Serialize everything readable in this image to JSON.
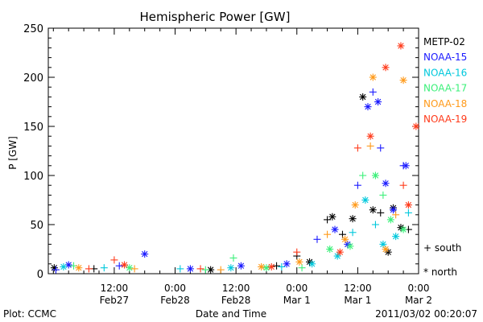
{
  "chart_data": {
    "type": "scatter",
    "title": "Hemispheric Power [GW]",
    "ylabel": "P [GW]",
    "xlabel": "Date and Time",
    "x_axis": "time",
    "ylim": [
      0,
      250
    ],
    "y_ticks": [
      0,
      50,
      100,
      150,
      200,
      250
    ],
    "xlim": [
      "2011-02-26T23:00",
      "2011-03-02T00:00"
    ],
    "x_ticks": [
      {
        "t": "2011-02-27T12:00",
        "time": "12:00",
        "date": "Feb27"
      },
      {
        "t": "2011-02-28T00:00",
        "time": "0:00",
        "date": "Feb28"
      },
      {
        "t": "2011-02-28T12:00",
        "time": "12:00",
        "date": "Feb28"
      },
      {
        "t": "2011-03-01T00:00",
        "time": "0:00",
        "date": "Mar 1"
      },
      {
        "t": "2011-03-01T12:00",
        "time": "12:00",
        "date": "Mar 1"
      },
      {
        "t": "2011-03-02T00:00",
        "time": "0:00",
        "date": "Mar 2"
      }
    ],
    "grid": false,
    "legend_position": "right",
    "marker_legend": [
      {
        "symbol": "+",
        "label": "south"
      },
      {
        "symbol": "*",
        "label": "north"
      }
    ],
    "series": [
      {
        "name": "METP-02",
        "color": "#000000",
        "points": [
          {
            "t": "2011-02-27T00:10",
            "y": 6,
            "m": "*"
          },
          {
            "t": "2011-02-27T08:00",
            "y": 5,
            "m": "+"
          },
          {
            "t": "2011-02-28T07:00",
            "y": 4,
            "m": "*"
          },
          {
            "t": "2011-02-28T20:00",
            "y": 8,
            "m": "+"
          },
          {
            "t": "2011-03-01T00:00",
            "y": 18,
            "m": "+"
          },
          {
            "t": "2011-03-01T02:30",
            "y": 12,
            "m": "*"
          },
          {
            "t": "2011-03-01T06:00",
            "y": 55,
            "m": "+"
          },
          {
            "t": "2011-03-01T07:00",
            "y": 58,
            "m": "*"
          },
          {
            "t": "2011-03-01T09:00",
            "y": 40,
            "m": "+"
          },
          {
            "t": "2011-03-01T11:00",
            "y": 56,
            "m": "*"
          },
          {
            "t": "2011-03-01T13:00",
            "y": 180,
            "m": "*"
          },
          {
            "t": "2011-03-01T15:00",
            "y": 65,
            "m": "*"
          },
          {
            "t": "2011-03-01T16:30",
            "y": 62,
            "m": "+"
          },
          {
            "t": "2011-03-01T18:00",
            "y": 22,
            "m": "*"
          },
          {
            "t": "2011-03-01T19:00",
            "y": 67,
            "m": "*"
          },
          {
            "t": "2011-03-01T20:30",
            "y": 47,
            "m": "*"
          },
          {
            "t": "2011-03-01T22:00",
            "y": 45,
            "m": "+"
          }
        ]
      },
      {
        "name": "NOAA-15",
        "color": "#1a1aff",
        "points": [
          {
            "t": "2011-02-27T00:30",
            "y": 4,
            "m": "+"
          },
          {
            "t": "2011-02-27T03:00",
            "y": 9,
            "m": "*"
          },
          {
            "t": "2011-02-27T13:00",
            "y": 8,
            "m": "+"
          },
          {
            "t": "2011-02-27T18:00",
            "y": 20,
            "m": "*"
          },
          {
            "t": "2011-02-28T03:00",
            "y": 5,
            "m": "*"
          },
          {
            "t": "2011-02-28T13:00",
            "y": 8,
            "m": "*"
          },
          {
            "t": "2011-02-28T22:00",
            "y": 10,
            "m": "*"
          },
          {
            "t": "2011-03-01T04:00",
            "y": 35,
            "m": "+"
          },
          {
            "t": "2011-03-01T07:30",
            "y": 45,
            "m": "*"
          },
          {
            "t": "2011-03-01T10:00",
            "y": 30,
            "m": "*"
          },
          {
            "t": "2011-03-01T12:00",
            "y": 90,
            "m": "+"
          },
          {
            "t": "2011-03-01T14:00",
            "y": 170,
            "m": "*"
          },
          {
            "t": "2011-03-01T15:00",
            "y": 185,
            "m": "+"
          },
          {
            "t": "2011-03-01T16:00",
            "y": 175,
            "m": "*"
          },
          {
            "t": "2011-03-01T16:30",
            "y": 128,
            "m": "+"
          },
          {
            "t": "2011-03-01T17:30",
            "y": 92,
            "m": "*"
          },
          {
            "t": "2011-03-01T19:00",
            "y": 65,
            "m": "*"
          },
          {
            "t": "2011-03-01T21:00",
            "y": 110,
            "m": "+"
          },
          {
            "t": "2011-03-01T21:30",
            "y": 110,
            "m": "*"
          }
        ]
      },
      {
        "name": "NOAA-16",
        "color": "#00c8dc",
        "points": [
          {
            "t": "2011-02-27T02:00",
            "y": 7,
            "m": "*"
          },
          {
            "t": "2011-02-27T10:00",
            "y": 6,
            "m": "+"
          },
          {
            "t": "2011-02-28T01:00",
            "y": 5,
            "m": "+"
          },
          {
            "t": "2011-02-28T11:00",
            "y": 6,
            "m": "*"
          },
          {
            "t": "2011-02-28T21:00",
            "y": 7,
            "m": "+"
          },
          {
            "t": "2011-03-01T03:00",
            "y": 10,
            "m": "*"
          },
          {
            "t": "2011-03-01T08:00",
            "y": 18,
            "m": "*"
          },
          {
            "t": "2011-03-01T11:00",
            "y": 42,
            "m": "+"
          },
          {
            "t": "2011-03-01T13:30",
            "y": 75,
            "m": "*"
          },
          {
            "t": "2011-03-01T15:30",
            "y": 50,
            "m": "+"
          },
          {
            "t": "2011-03-01T17:00",
            "y": 30,
            "m": "*"
          },
          {
            "t": "2011-03-01T19:30",
            "y": 38,
            "m": "*"
          },
          {
            "t": "2011-03-01T22:00",
            "y": 62,
            "m": "+"
          }
        ]
      },
      {
        "name": "NOAA-17",
        "color": "#3cf07a",
        "points": [
          {
            "t": "2011-02-27T04:00",
            "y": 8,
            "m": "+"
          },
          {
            "t": "2011-02-27T15:00",
            "y": 6,
            "m": "*"
          },
          {
            "t": "2011-02-28T06:00",
            "y": 4,
            "m": "+"
          },
          {
            "t": "2011-02-28T11:30",
            "y": 16,
            "m": "+"
          },
          {
            "t": "2011-02-28T18:00",
            "y": 6,
            "m": "*"
          },
          {
            "t": "2011-03-01T01:00",
            "y": 6,
            "m": "+"
          },
          {
            "t": "2011-03-01T06:30",
            "y": 25,
            "m": "*"
          },
          {
            "t": "2011-03-01T10:30",
            "y": 28,
            "m": "*"
          },
          {
            "t": "2011-03-01T13:00",
            "y": 100,
            "m": "+"
          },
          {
            "t": "2011-03-01T15:30",
            "y": 100,
            "m": "*"
          },
          {
            "t": "2011-03-01T17:00",
            "y": 80,
            "m": "+"
          },
          {
            "t": "2011-03-01T18:30",
            "y": 55,
            "m": "*"
          },
          {
            "t": "2011-03-01T21:00",
            "y": 45,
            "m": "*"
          }
        ]
      },
      {
        "name": "NOAA-18",
        "color": "#ff9a1a",
        "points": [
          {
            "t": "2011-02-27T05:00",
            "y": 6,
            "m": "*"
          },
          {
            "t": "2011-02-27T16:00",
            "y": 5,
            "m": "+"
          },
          {
            "t": "2011-02-28T09:00",
            "y": 4,
            "m": "+"
          },
          {
            "t": "2011-02-28T17:00",
            "y": 7,
            "m": "*"
          },
          {
            "t": "2011-03-01T00:30",
            "y": 12,
            "m": "*"
          },
          {
            "t": "2011-03-01T06:00",
            "y": 40,
            "m": "+"
          },
          {
            "t": "2011-03-01T09:30",
            "y": 35,
            "m": "*"
          },
          {
            "t": "2011-03-01T11:30",
            "y": 70,
            "m": "*"
          },
          {
            "t": "2011-03-01T14:30",
            "y": 130,
            "m": "+"
          },
          {
            "t": "2011-03-01T15:00",
            "y": 200,
            "m": "*"
          },
          {
            "t": "2011-03-01T17:30",
            "y": 25,
            "m": "*"
          },
          {
            "t": "2011-03-01T19:30",
            "y": 60,
            "m": "+"
          },
          {
            "t": "2011-03-01T21:00",
            "y": 197,
            "m": "*"
          }
        ]
      },
      {
        "name": "NOAA-19",
        "color": "#ff3a1a",
        "points": [
          {
            "t": "2011-02-27T07:00",
            "y": 5,
            "m": "+"
          },
          {
            "t": "2011-02-27T12:00",
            "y": 14,
            "m": "+"
          },
          {
            "t": "2011-02-27T14:00",
            "y": 9,
            "m": "*"
          },
          {
            "t": "2011-02-28T05:00",
            "y": 5,
            "m": "+"
          },
          {
            "t": "2011-02-28T19:00",
            "y": 7,
            "m": "*"
          },
          {
            "t": "2011-03-01T00:00",
            "y": 22,
            "m": "+"
          },
          {
            "t": "2011-03-01T08:30",
            "y": 22,
            "m": "*"
          },
          {
            "t": "2011-03-01T12:00",
            "y": 128,
            "m": "+"
          },
          {
            "t": "2011-03-01T14:30",
            "y": 140,
            "m": "*"
          },
          {
            "t": "2011-03-01T17:30",
            "y": 210,
            "m": "*"
          },
          {
            "t": "2011-03-01T20:30",
            "y": 232,
            "m": "*"
          },
          {
            "t": "2011-03-01T21:00",
            "y": 90,
            "m": "+"
          },
          {
            "t": "2011-03-01T22:00",
            "y": 70,
            "m": "*"
          },
          {
            "t": "2011-03-01T23:30",
            "y": 150,
            "m": "*"
          }
        ]
      }
    ]
  },
  "footer": {
    "left": "Plot: CCMC",
    "right": "2011/03/02 00:20:07"
  }
}
